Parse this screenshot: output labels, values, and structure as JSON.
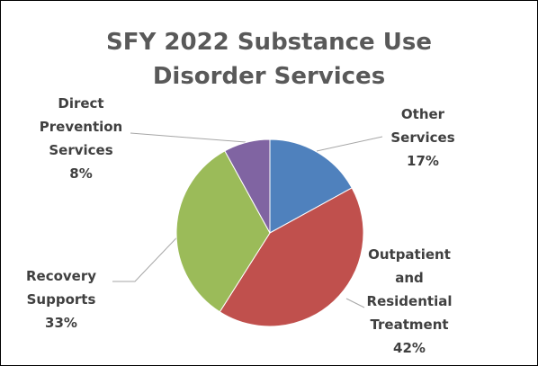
{
  "chart_data": {
    "type": "pie",
    "title": "SFY 2022 Substance Use Disorder Services",
    "categories": [
      "Other Services",
      "Outpatient and Residential Treatment",
      "Recovery Supports",
      "Direct Prevention Services"
    ],
    "values": [
      17,
      42,
      33,
      8
    ],
    "value_labels": [
      "17%",
      "42%",
      "33%",
      "8%"
    ],
    "colors": [
      "#4f81bd",
      "#c0504d",
      "#9bbb59",
      "#8064a2"
    ]
  }
}
